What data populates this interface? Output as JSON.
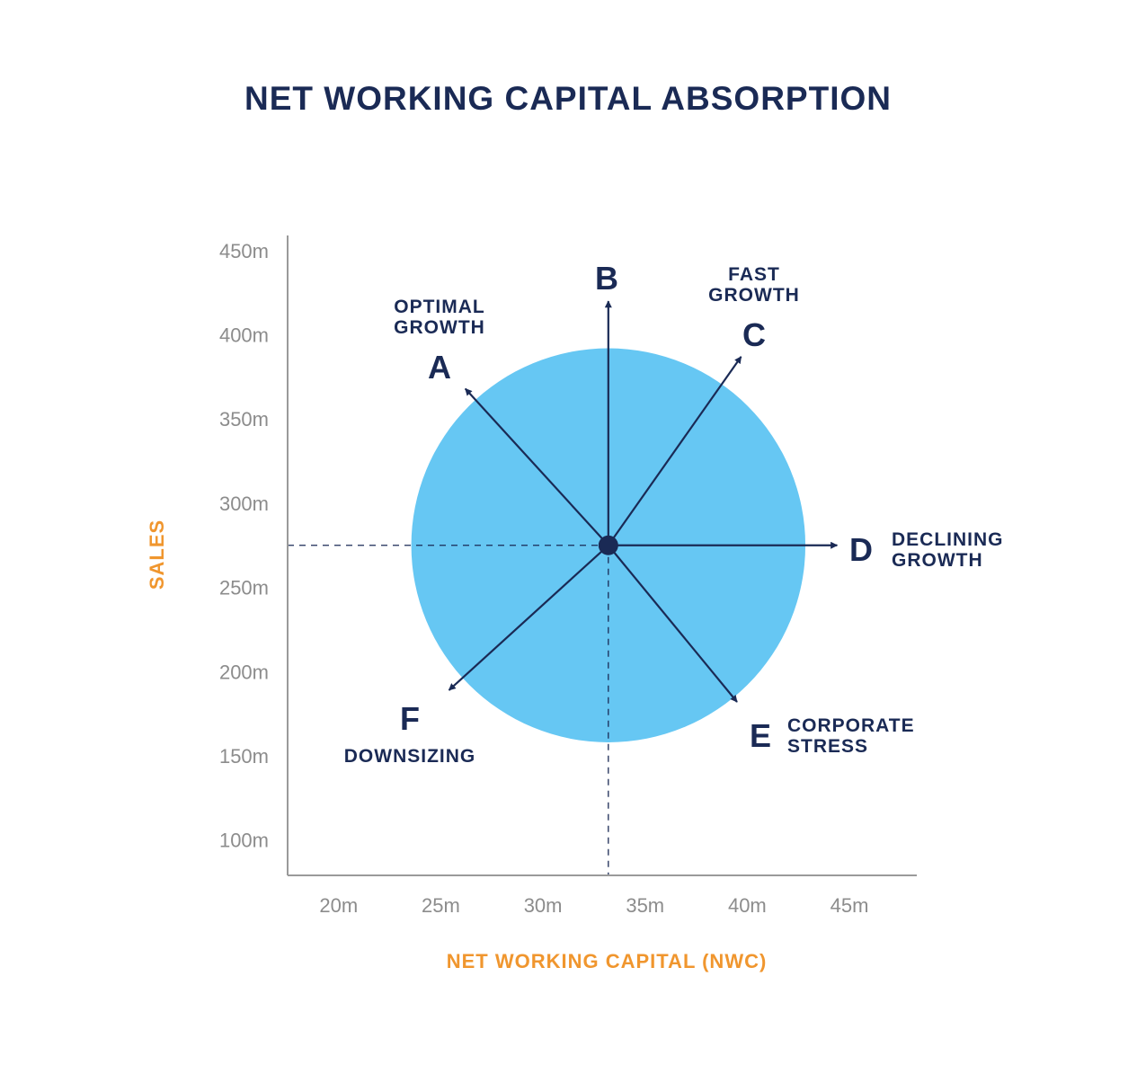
{
  "chart_data": {
    "type": "scatter",
    "title": "NET WORKING CAPITAL ABSORPTION",
    "xlabel": "NET WORKING CAPITAL (NWC)",
    "ylabel": "SALES",
    "x_ticks": [
      "20m",
      "25m",
      "30m",
      "35m",
      "40m",
      "45m"
    ],
    "x_tick_values": [
      20,
      25,
      30,
      35,
      40,
      45
    ],
    "y_ticks": [
      "450m",
      "400m",
      "350m",
      "300m",
      "250m",
      "200m",
      "150m",
      "100m"
    ],
    "y_tick_values": [
      450,
      400,
      350,
      300,
      250,
      200,
      150,
      100
    ],
    "xlim": [
      17.5,
      48.3
    ],
    "ylim": [
      79,
      459
    ],
    "center": {
      "x": 33.2,
      "y": 275
    },
    "circle_radius_y": 117,
    "directions": [
      {
        "letter": "A",
        "name": "OPTIMAL GROWTH",
        "lines": [
          "OPTIMAL",
          "GROWTH"
        ],
        "tip": {
          "x": 26.2,
          "y": 368
        }
      },
      {
        "letter": "B",
        "name": "",
        "lines": [],
        "tip": {
          "x": 33.2,
          "y": 420
        }
      },
      {
        "letter": "C",
        "name": "FAST GROWTH",
        "lines": [
          "FAST",
          "GROWTH"
        ],
        "tip": {
          "x": 39.7,
          "y": 387
        }
      },
      {
        "letter": "D",
        "name": "DECLINING GROWTH",
        "lines": [
          "DECLINING",
          "GROWTH"
        ],
        "tip": {
          "x": 44.4,
          "y": 275
        }
      },
      {
        "letter": "E",
        "name": "CORPORATE STRESS",
        "lines": [
          "CORPORATE",
          "STRESS"
        ],
        "tip": {
          "x": 39.5,
          "y": 182
        }
      },
      {
        "letter": "F",
        "name": "DOWNSIZING",
        "lines": [
          "DOWNSIZING"
        ],
        "tip": {
          "x": 25.4,
          "y": 189
        }
      }
    ],
    "grid": false,
    "legend": "none"
  },
  "colors": {
    "navy": "#1a2a55",
    "circle": "#66c7f3",
    "axis_title": "#f0962e",
    "tick": "#8c8c8c",
    "axis_line": "#9a9a9a"
  }
}
